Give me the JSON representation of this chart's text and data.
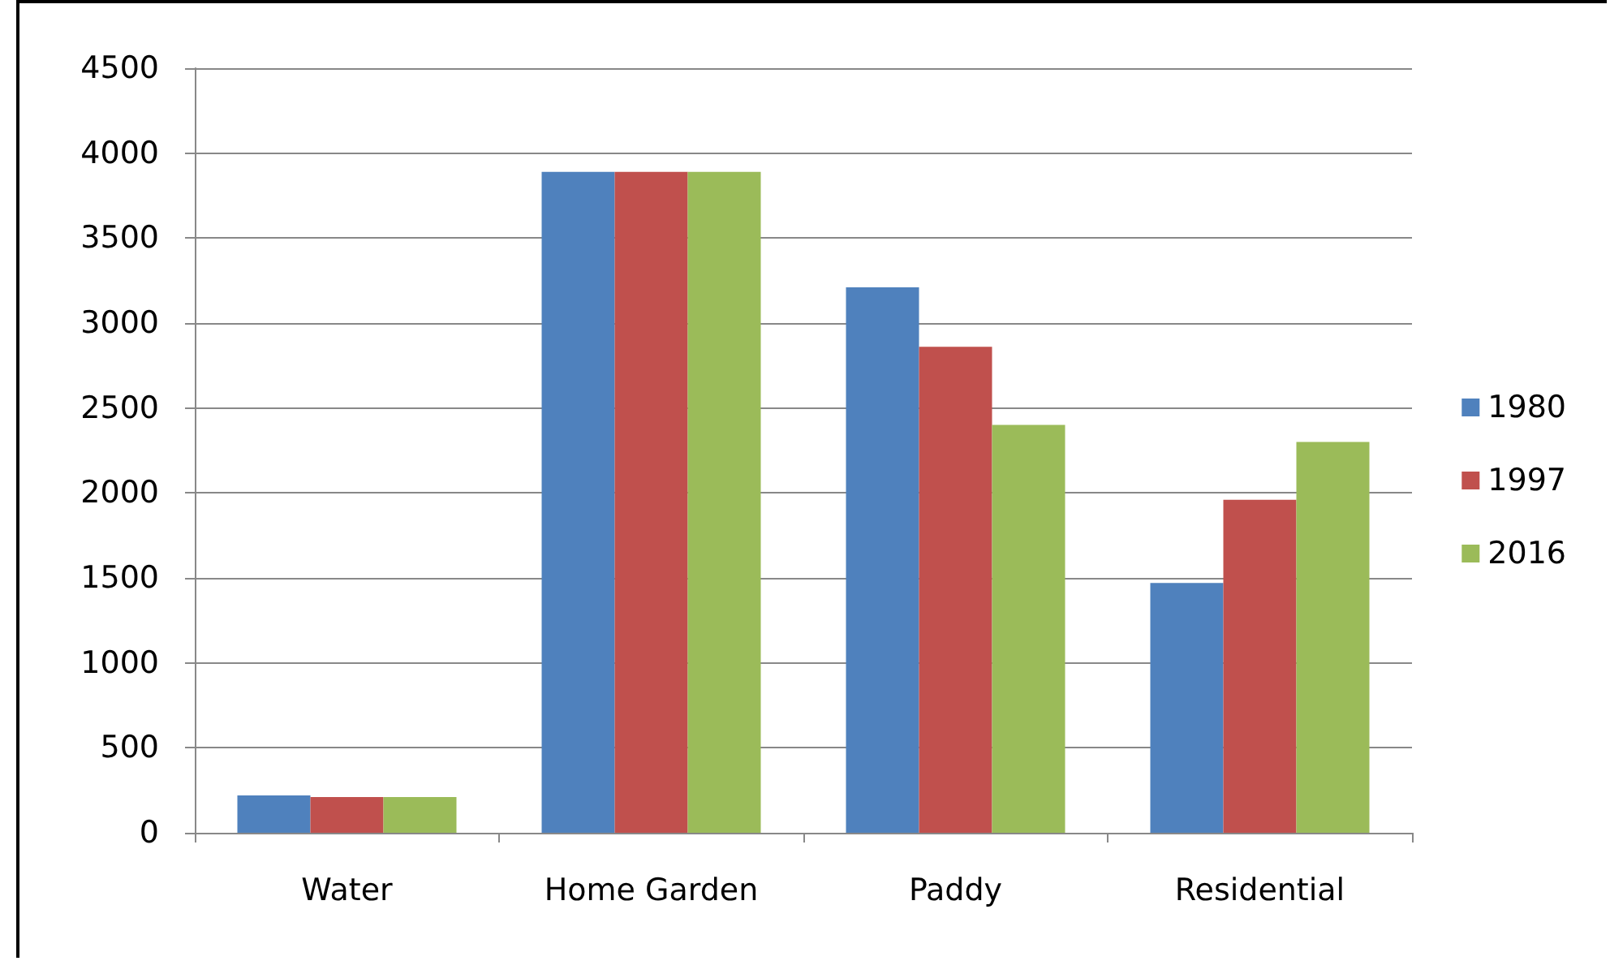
{
  "chart_data": {
    "type": "bar",
    "categories": [
      "Water",
      "Home Garden",
      "Paddy",
      "Residential"
    ],
    "series": [
      {
        "name": "1980",
        "color": "#4f81bd",
        "values": [
          220,
          3890,
          3210,
          1470
        ]
      },
      {
        "name": "1997",
        "color": "#c0504d",
        "values": [
          210,
          3890,
          2860,
          1960
        ]
      },
      {
        "name": "2016",
        "color": "#9bbb59",
        "values": [
          210,
          3890,
          2400,
          2300
        ]
      }
    ],
    "ylim": [
      0,
      4500
    ],
    "yticks": [
      0,
      500,
      1000,
      1500,
      2000,
      2500,
      3000,
      3500,
      4000,
      4500
    ],
    "grid": "y",
    "legend": "right"
  }
}
